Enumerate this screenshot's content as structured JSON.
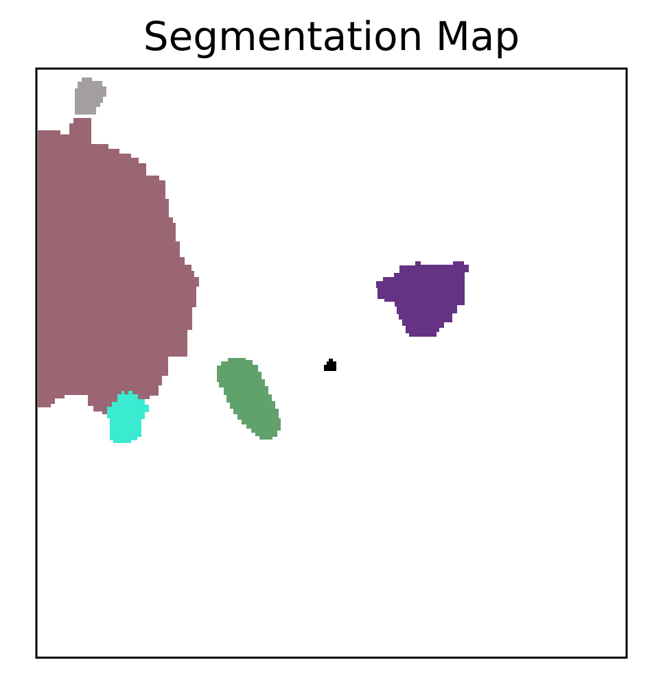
{
  "title": "Segmentation Map",
  "colors": {
    "background": "#ffffff",
    "frame": "#000000"
  },
  "segments": [
    {
      "id": "segment-large-mauve",
      "color": "#9a6673"
    },
    {
      "id": "segment-gray-top",
      "color": "#a39ea2"
    },
    {
      "id": "segment-cyan",
      "color": "#3aead1"
    },
    {
      "id": "segment-green",
      "color": "#61a16c"
    },
    {
      "id": "segment-purple",
      "color": "#643383"
    },
    {
      "id": "segment-black-dot",
      "color": "#000000"
    }
  ]
}
